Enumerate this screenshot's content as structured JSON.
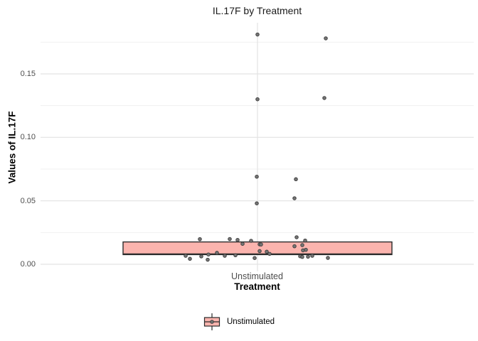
{
  "chart_data": {
    "type": "boxplot",
    "title": "IL.17F by Treatment",
    "xlabel": "Treatment",
    "ylabel": "Values of IL.17F",
    "categories": [
      "Unstimulated"
    ],
    "y_tick_labels": [
      "0.00",
      "0.05",
      "0.10",
      "0.15"
    ],
    "y_tick_values": [
      0,
      0.05,
      0.1,
      0.15
    ],
    "y_minor_values": [
      0.025,
      0.075,
      0.125,
      0.175
    ],
    "ylim": [
      -0.0056,
      0.1903
    ],
    "grid": "on",
    "legend_position": "bottom",
    "legend_labels": [
      "Unstimulated"
    ],
    "series": [
      {
        "name": "Unstimulated",
        "box": {
          "q1": 0.0076,
          "median": 0.008,
          "q3": 0.0176
        },
        "points": [
          [
            0,
            0.181
          ],
          [
            96,
            0.178
          ],
          [
            0,
            0.13
          ],
          [
            94,
            0.131
          ],
          [
            -1,
            0.069
          ],
          [
            54,
            0.067
          ],
          [
            52,
            0.052
          ],
          [
            -1,
            0.048
          ],
          [
            -81,
            0.0198
          ],
          [
            -39,
            0.0199
          ],
          [
            -28,
            0.0192
          ],
          [
            -21,
            0.0161
          ],
          [
            -9,
            0.0185
          ],
          [
            3,
            0.0157
          ],
          [
            5,
            0.0156
          ],
          [
            3,
            0.0104
          ],
          [
            -101,
            0.0067
          ],
          [
            -95,
            0.0043
          ],
          [
            -79,
            0.0062
          ],
          [
            -70,
            0.0036
          ],
          [
            -69,
            0.0077
          ],
          [
            -57,
            0.009
          ],
          [
            -46,
            0.0067
          ],
          [
            -31,
            0.0071
          ],
          [
            -4,
            0.0049
          ],
          [
            13,
            0.0099
          ],
          [
            17,
            0.0082
          ],
          [
            55,
            0.0213
          ],
          [
            52,
            0.0142
          ],
          [
            67,
            0.0187
          ],
          [
            63,
            0.0151
          ],
          [
            64,
            0.011
          ],
          [
            68,
            0.0114
          ],
          [
            60,
            0.0063
          ],
          [
            63,
            0.0058
          ],
          [
            71,
            0.006
          ],
          [
            77,
            0.0067
          ],
          [
            99,
            0.005
          ]
        ]
      }
    ],
    "colors": {
      "box_fill": "#FBB4AE",
      "box_stroke": "#2B2B2B",
      "point_fill": "#757575",
      "point_stroke": "#3a3a3a",
      "grid_major": "#E3E3E3",
      "grid_minor": "#F0F0F0",
      "tick_text": "#4d4d4d"
    }
  }
}
